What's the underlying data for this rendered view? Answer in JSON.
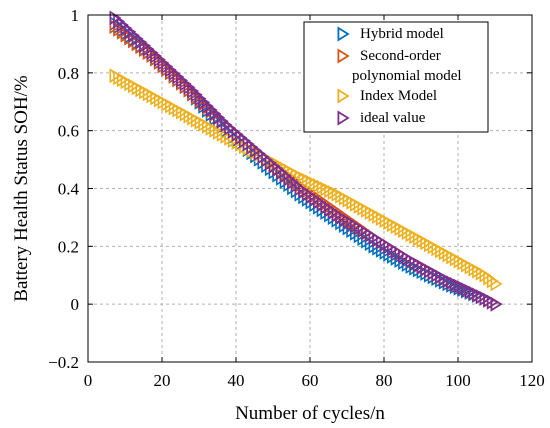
{
  "chart_data": {
    "type": "scatter",
    "xlabel": "Number of cycles/n",
    "ylabel": "Battery Health Status SOH/%",
    "xlim": [
      0,
      120
    ],
    "ylim": [
      -0.2,
      1
    ],
    "xticks": [
      "0",
      "20",
      "40",
      "60",
      "80",
      "100",
      "120"
    ],
    "yticks": [
      "−0.2",
      "0",
      "0.2",
      "0.4",
      "0.6",
      "0.8",
      "1"
    ],
    "grid": true,
    "legend_position": "top-right",
    "marker": "triangle-right",
    "series": [
      {
        "name": "Hybrid model",
        "color": "#0072bd",
        "x": [
          7,
          17,
          27,
          37,
          47,
          57,
          67,
          77,
          87,
          97,
          107,
          110
        ],
        "y": [
          0.97,
          0.86,
          0.74,
          0.6,
          0.49,
          0.38,
          0.29,
          0.2,
          0.13,
          0.07,
          0.02,
          0.0
        ]
      },
      {
        "name": "Second-order polynomial model",
        "color": "#d95319",
        "x": [
          7,
          17,
          27,
          37,
          47,
          57,
          67,
          77,
          87,
          97,
          107,
          110
        ],
        "y": [
          0.96,
          0.86,
          0.74,
          0.62,
          0.51,
          0.41,
          0.32,
          0.23,
          0.15,
          0.08,
          0.02,
          0.0
        ]
      },
      {
        "name": "Index Model",
        "color": "#edb120",
        "x": [
          7,
          17,
          27,
          37,
          47,
          57,
          67,
          77,
          87,
          97,
          107,
          110
        ],
        "y": [
          0.79,
          0.72,
          0.65,
          0.58,
          0.51,
          0.44,
          0.38,
          0.31,
          0.24,
          0.17,
          0.1,
          0.07
        ]
      },
      {
        "name": "ideal value",
        "color": "#7e2f8e",
        "x": [
          7,
          17,
          27,
          37,
          47,
          57,
          67,
          77,
          87,
          97,
          107,
          110
        ],
        "y": [
          0.99,
          0.87,
          0.75,
          0.62,
          0.51,
          0.4,
          0.31,
          0.23,
          0.15,
          0.08,
          0.02,
          0.0
        ]
      }
    ],
    "legend_lines": [
      [
        "Hybrid model"
      ],
      [
        "Second-order",
        "polynomial model"
      ],
      [
        "Index Model"
      ],
      [
        "ideal value"
      ]
    ]
  }
}
